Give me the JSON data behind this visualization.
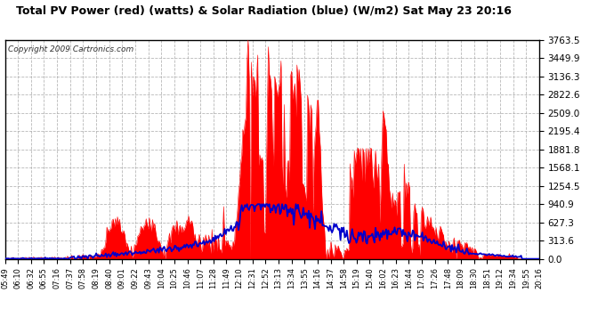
{
  "title": "Total PV Power (red) (watts) & Solar Radiation (blue) (W/m2) Sat May 23 20:16",
  "copyright_text": "Copyright 2009 Cartronics.com",
  "background_color": "#ffffff",
  "plot_bg_color": "#ffffff",
  "grid_color": "#b0b0b0",
  "yticks_right": [
    0.0,
    313.6,
    627.3,
    940.9,
    1254.5,
    1568.1,
    1881.8,
    2195.4,
    2509.0,
    2822.6,
    3136.3,
    3449.9,
    3763.5
  ],
  "ymax": 3763.5,
  "fill_color": "#ff0000",
  "line_color": "#0000cc",
  "xtick_labels": [
    "05:49",
    "06:10",
    "06:32",
    "06:55",
    "07:16",
    "07:37",
    "07:58",
    "08:19",
    "08:40",
    "09:01",
    "09:22",
    "09:43",
    "10:04",
    "10:25",
    "10:46",
    "11:07",
    "11:28",
    "11:49",
    "12:10",
    "12:31",
    "12:52",
    "13:13",
    "13:34",
    "13:55",
    "14:16",
    "14:37",
    "14:58",
    "15:19",
    "15:40",
    "16:02",
    "16:23",
    "16:44",
    "17:05",
    "17:26",
    "17:48",
    "18:09",
    "18:30",
    "18:51",
    "19:12",
    "19:34",
    "19:55",
    "20:16"
  ]
}
